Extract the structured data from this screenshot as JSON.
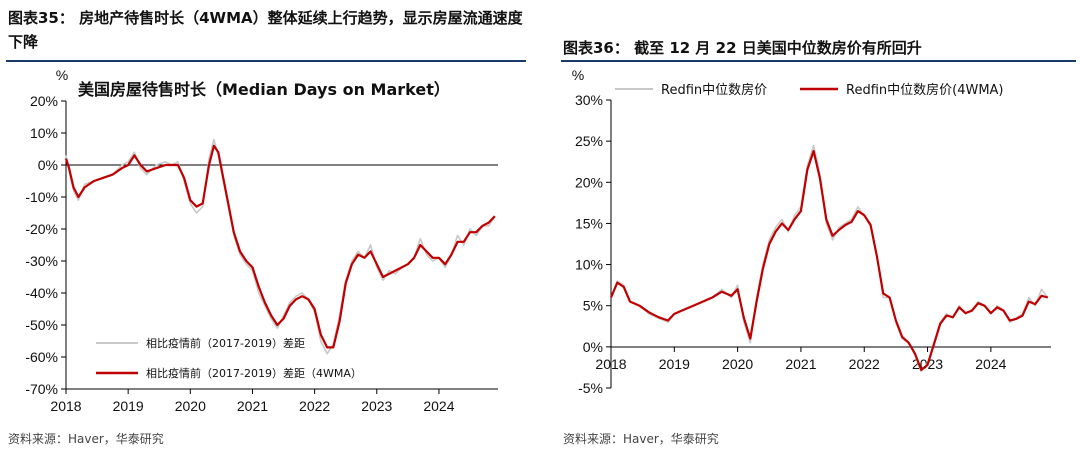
{
  "left": {
    "title": "图表35： 房地产待售时长（4WMA）整体延续上行趋势，显示房屋流通速度下降",
    "source": "资料来源：Haver，华泰研究",
    "chart_data": {
      "type": "line",
      "title": "美国房屋待售时长（Median Days on Market）",
      "ylabel": "%",
      "ylim": [
        -70,
        20
      ],
      "yticks": [
        "20%",
        "10%",
        "0%",
        "-10%",
        "-20%",
        "-30%",
        "-40%",
        "-50%",
        "-60%",
        "-70%"
      ],
      "ytick_values": [
        20,
        10,
        0,
        -10,
        -20,
        -30,
        -40,
        -50,
        -60,
        -70
      ],
      "xlim": [
        2018,
        2024.95
      ],
      "xticks": [
        "2018",
        "2019",
        "2020",
        "2021",
        "2022",
        "2023",
        "2024"
      ],
      "xtick_values": [
        2018,
        2019,
        2020,
        2021,
        2022,
        2023,
        2024
      ],
      "legend_location": "lower-left",
      "series": [
        {
          "name": "相比疫情前（2017-2019）差距",
          "color": "#c8c8c8",
          "x": [
            2018.0,
            2018.05,
            2018.12,
            2018.2,
            2018.3,
            2018.45,
            2018.6,
            2018.75,
            2018.9,
            2019.0,
            2019.1,
            2019.2,
            2019.3,
            2019.45,
            2019.6,
            2019.7,
            2019.8,
            2019.9,
            2020.0,
            2020.1,
            2020.2,
            2020.3,
            2020.38,
            2020.45,
            2020.52,
            2020.6,
            2020.7,
            2020.8,
            2020.9,
            2021.0,
            2021.1,
            2021.2,
            2021.3,
            2021.4,
            2021.5,
            2021.6,
            2021.7,
            2021.8,
            2021.9,
            2022.0,
            2022.1,
            2022.2,
            2022.3,
            2022.4,
            2022.5,
            2022.6,
            2022.7,
            2022.8,
            2022.9,
            2023.0,
            2023.1,
            2023.2,
            2023.3,
            2023.4,
            2023.5,
            2023.6,
            2023.7,
            2023.8,
            2023.9,
            2024.0,
            2024.1,
            2024.2,
            2024.3,
            2024.4,
            2024.5,
            2024.6,
            2024.7,
            2024.8,
            2024.9
          ],
          "values": [
            3,
            -2,
            -8,
            -11,
            -6,
            -5,
            -4,
            -3,
            0,
            1,
            4,
            -1,
            -3,
            0,
            1,
            0,
            1,
            -5,
            -12,
            -15,
            -13,
            2,
            8,
            3,
            -4,
            -12,
            -22,
            -28,
            -31,
            -33,
            -40,
            -44,
            -48,
            -51,
            -47,
            -43,
            -41,
            -40,
            -42,
            -46,
            -55,
            -59,
            -56,
            -47,
            -36,
            -30,
            -27,
            -29,
            -25,
            -32,
            -36,
            -33,
            -34,
            -32,
            -31,
            -29,
            -23,
            -28,
            -30,
            -29,
            -32,
            -28,
            -22,
            -25,
            -20,
            -22,
            -19,
            -19,
            -16
          ]
        },
        {
          "name": "相比疫情前（2017-2019）差距（4WMA）",
          "color": "#c00000",
          "x": [
            2018.0,
            2018.05,
            2018.12,
            2018.2,
            2018.3,
            2018.45,
            2018.6,
            2018.75,
            2018.9,
            2019.0,
            2019.1,
            2019.2,
            2019.3,
            2019.45,
            2019.6,
            2019.7,
            2019.8,
            2019.9,
            2020.0,
            2020.1,
            2020.2,
            2020.3,
            2020.38,
            2020.45,
            2020.52,
            2020.6,
            2020.7,
            2020.8,
            2020.9,
            2021.0,
            2021.1,
            2021.2,
            2021.3,
            2021.4,
            2021.5,
            2021.6,
            2021.7,
            2021.8,
            2021.9,
            2022.0,
            2022.1,
            2022.2,
            2022.3,
            2022.4,
            2022.5,
            2022.6,
            2022.7,
            2022.8,
            2022.9,
            2023.0,
            2023.1,
            2023.2,
            2023.3,
            2023.4,
            2023.5,
            2023.6,
            2023.7,
            2023.8,
            2023.9,
            2024.0,
            2024.1,
            2024.2,
            2024.3,
            2024.4,
            2024.5,
            2024.6,
            2024.7,
            2024.8,
            2024.9
          ],
          "values": [
            2,
            -1,
            -7,
            -10,
            -7,
            -5,
            -4,
            -3,
            -1,
            0,
            3,
            0,
            -2,
            -1,
            0,
            0,
            0,
            -4,
            -11,
            -13,
            -12,
            0,
            6,
            4,
            -3,
            -11,
            -21,
            -27,
            -30,
            -32,
            -38,
            -43,
            -47,
            -50,
            -48,
            -44,
            -42,
            -41,
            -42,
            -45,
            -53,
            -57,
            -57,
            -49,
            -37,
            -31,
            -28,
            -29,
            -27,
            -31,
            -35,
            -34,
            -33,
            -32,
            -31,
            -29,
            -25,
            -27,
            -29,
            -29,
            -31,
            -28,
            -24,
            -24,
            -21,
            -21,
            -19,
            -18,
            -16
          ]
        }
      ]
    }
  },
  "right": {
    "title": "图表36： 截至 12 月 22 日美国中位数房价有所回升",
    "source": "资料来源：Haver，华泰研究",
    "chart_data": {
      "type": "line",
      "title": "",
      "ylabel": "%",
      "ylim": [
        -5,
        30
      ],
      "yticks": [
        "30%",
        "25%",
        "20%",
        "15%",
        "10%",
        "5%",
        "0%",
        "-5%"
      ],
      "ytick_values": [
        30,
        25,
        20,
        15,
        10,
        5,
        0,
        -5
      ],
      "xlim": [
        2018,
        2024.95
      ],
      "xticks": [
        "2018",
        "2019",
        "2020",
        "2021",
        "2022",
        "2023",
        "2024"
      ],
      "xtick_values": [
        2018,
        2019,
        2020,
        2021,
        2022,
        2023,
        2024
      ],
      "legend_location": "top",
      "series": [
        {
          "name": "Redfin中位数房价",
          "color": "#c8c8c8",
          "x": [
            2018.0,
            2018.1,
            2018.2,
            2018.3,
            2018.45,
            2018.6,
            2018.75,
            2018.9,
            2019.0,
            2019.15,
            2019.3,
            2019.45,
            2019.6,
            2019.75,
            2019.9,
            2020.0,
            2020.1,
            2020.2,
            2020.3,
            2020.4,
            2020.5,
            2020.6,
            2020.7,
            2020.8,
            2020.9,
            2021.0,
            2021.1,
            2021.2,
            2021.3,
            2021.4,
            2021.5,
            2021.6,
            2021.7,
            2021.8,
            2021.9,
            2022.0,
            2022.1,
            2022.2,
            2022.3,
            2022.4,
            2022.5,
            2022.6,
            2022.7,
            2022.8,
            2022.9,
            2023.0,
            2023.1,
            2023.2,
            2023.3,
            2023.4,
            2023.5,
            2023.6,
            2023.7,
            2023.8,
            2023.9,
            2024.0,
            2024.1,
            2024.2,
            2024.3,
            2024.4,
            2024.5,
            2024.6,
            2024.7,
            2024.8,
            2024.9
          ],
          "values": [
            6,
            8,
            7.5,
            5.5,
            5,
            4,
            3.5,
            3,
            4,
            4.5,
            5,
            5.5,
            6,
            7,
            6,
            7.5,
            3,
            0.5,
            6,
            10,
            13,
            14.5,
            15.5,
            14,
            16,
            17,
            22,
            24.5,
            21,
            15,
            13,
            14.5,
            15,
            15.5,
            17,
            16,
            15,
            11,
            6,
            6,
            3,
            1,
            0.5,
            -1,
            -3,
            -2,
            0.5,
            3,
            4,
            3.5,
            5,
            4,
            4.5,
            5.5,
            5,
            4,
            5,
            4.5,
            3,
            3.5,
            4,
            6,
            5,
            7,
            6
          ]
        },
        {
          "name": "Redfin中位数房价(4WMA)",
          "color": "#c00000",
          "x": [
            2018.0,
            2018.1,
            2018.2,
            2018.3,
            2018.45,
            2018.6,
            2018.75,
            2018.9,
            2019.0,
            2019.15,
            2019.3,
            2019.45,
            2019.6,
            2019.75,
            2019.9,
            2020.0,
            2020.1,
            2020.2,
            2020.3,
            2020.4,
            2020.5,
            2020.6,
            2020.7,
            2020.8,
            2020.9,
            2021.0,
            2021.1,
            2021.2,
            2021.3,
            2021.4,
            2021.5,
            2021.6,
            2021.7,
            2021.8,
            2021.9,
            2022.0,
            2022.1,
            2022.2,
            2022.3,
            2022.4,
            2022.5,
            2022.6,
            2022.7,
            2022.8,
            2022.9,
            2023.0,
            2023.1,
            2023.2,
            2023.3,
            2023.4,
            2023.5,
            2023.6,
            2023.7,
            2023.8,
            2023.9,
            2024.0,
            2024.1,
            2024.2,
            2024.3,
            2024.4,
            2024.5,
            2024.6,
            2024.7,
            2024.8,
            2024.9
          ],
          "values": [
            6,
            7.8,
            7.3,
            5.5,
            5,
            4.2,
            3.6,
            3.2,
            4,
            4.5,
            5,
            5.5,
            6,
            6.7,
            6.2,
            7,
            3.5,
            1,
            5.5,
            9.5,
            12.5,
            14,
            15,
            14.2,
            15.5,
            16.5,
            21.5,
            23.8,
            20.5,
            15.5,
            13.5,
            14.2,
            14.8,
            15.2,
            16.5,
            16,
            14.8,
            11,
            6.5,
            6,
            3.2,
            1.2,
            0.5,
            -0.8,
            -2.8,
            -2.2,
            0.3,
            2.8,
            3.8,
            3.6,
            4.8,
            4.1,
            4.4,
            5.3,
            5,
            4.1,
            4.8,
            4.4,
            3.2,
            3.4,
            3.8,
            5.5,
            5.2,
            6.2,
            6
          ]
        }
      ]
    }
  }
}
